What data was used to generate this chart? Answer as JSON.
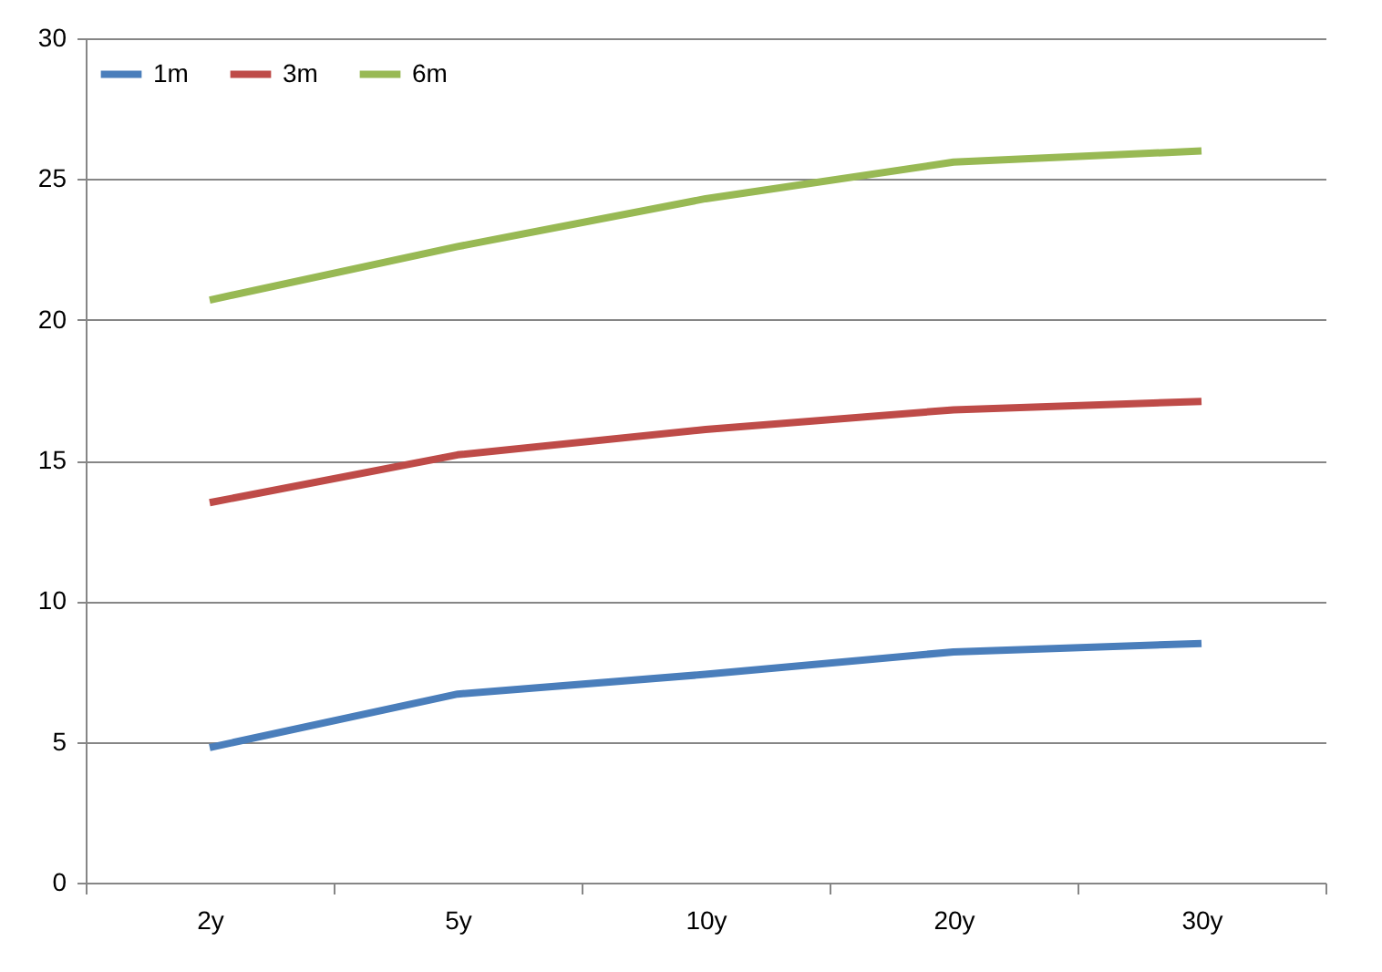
{
  "chart_data": {
    "type": "line",
    "categories": [
      "2y",
      "5y",
      "10y",
      "20y",
      "30y"
    ],
    "series": [
      {
        "name": "1m",
        "color": "#4a7ebb",
        "values": [
          4.8,
          6.7,
          7.4,
          8.2,
          8.5
        ]
      },
      {
        "name": "3m",
        "color": "#be4b48",
        "values": [
          13.5,
          15.2,
          16.1,
          16.8,
          17.1
        ]
      },
      {
        "name": "6m",
        "color": "#98b954",
        "values": [
          20.7,
          22.6,
          24.3,
          25.6,
          26.0
        ]
      }
    ],
    "ylim": [
      0,
      30
    ],
    "yticks": [
      0,
      5,
      10,
      15,
      20,
      25,
      30
    ],
    "grid": "y",
    "legend": "top left",
    "marker": "none",
    "line_style": "solid"
  }
}
